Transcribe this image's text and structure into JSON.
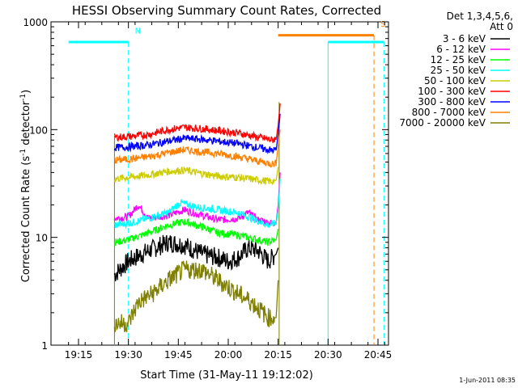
{
  "chart_data": {
    "type": "line",
    "title": "HESSI Observing Summary Count Rates, Corrected",
    "xlabel": "Start Time (31-May-11 19:12:02)",
    "ylabel_main": "Corrected Count Rate (s",
    "ylabel_sup1": "-1",
    "ylabel_mid": " detector",
    "ylabel_sup2": "-1",
    "ylabel_end": ")",
    "yscale": "log",
    "xlim_minutes": [
      19.2,
      19.95
    ],
    "ylim": [
      1,
      1000
    ],
    "x_ticks": [
      {
        "label": "19:15",
        "t": 19.25
      },
      {
        "label": "19:30",
        "t": 19.5
      },
      {
        "label": "19:45",
        "t": 19.75
      },
      {
        "label": "20:00",
        "t": 20.0
      },
      {
        "label": "20:15",
        "t": 20.25
      },
      {
        "label": "20:30",
        "t": 20.5
      },
      {
        "label": "20:45",
        "t": 20.75
      }
    ],
    "y_ticks": [
      {
        "label": "1",
        "v": 1
      },
      {
        "label": "10",
        "v": 10
      },
      {
        "label": "100",
        "v": 100
      },
      {
        "label": "1000",
        "v": 1000
      }
    ],
    "legend_header": [
      "Det 1,3,4,5,6,",
      "Att 0"
    ],
    "series": [
      {
        "name": "3 - 6 keV",
        "color": "#000000",
        "points": [
          [
            19.43,
            4.5
          ],
          [
            19.5,
            6
          ],
          [
            19.6,
            7.5
          ],
          [
            19.7,
            9
          ],
          [
            19.78,
            8.5
          ],
          [
            19.87,
            7
          ],
          [
            19.95,
            6.5
          ],
          [
            20.0,
            6
          ],
          [
            20.05,
            6.5
          ],
          [
            20.1,
            8
          ],
          [
            20.15,
            7.5
          ],
          [
            20.2,
            6
          ],
          [
            20.24,
            7
          ],
          [
            20.25,
            8
          ]
        ]
      },
      {
        "name": "6 - 12 keV",
        "color": "#ff00ff",
        "points": [
          [
            19.43,
            15
          ],
          [
            19.5,
            15.5
          ],
          [
            19.55,
            20
          ],
          [
            19.6,
            15
          ],
          [
            19.7,
            16
          ],
          [
            19.78,
            18
          ],
          [
            19.87,
            16
          ],
          [
            19.95,
            14.5
          ],
          [
            20.05,
            15
          ],
          [
            20.1,
            17
          ],
          [
            20.15,
            14.5
          ],
          [
            20.22,
            13.5
          ],
          [
            20.24,
            14
          ],
          [
            20.25,
            20
          ],
          [
            20.26,
            40
          ]
        ]
      },
      {
        "name": "12 - 25 keV",
        "color": "#00ff00",
        "points": [
          [
            19.43,
            9
          ],
          [
            19.5,
            9.5
          ],
          [
            19.6,
            11
          ],
          [
            19.7,
            13
          ],
          [
            19.78,
            14
          ],
          [
            19.87,
            12.5
          ],
          [
            19.95,
            11
          ],
          [
            20.05,
            10.5
          ],
          [
            20.1,
            10
          ],
          [
            20.2,
            9
          ],
          [
            20.24,
            9.5
          ],
          [
            20.25,
            12
          ]
        ]
      },
      {
        "name": "25 - 50 keV",
        "color": "#00ffff",
        "points": [
          [
            19.43,
            13
          ],
          [
            19.5,
            13.5
          ],
          [
            19.6,
            15
          ],
          [
            19.7,
            17
          ],
          [
            19.76,
            21
          ],
          [
            19.85,
            19
          ],
          [
            19.95,
            18
          ],
          [
            20.05,
            17
          ],
          [
            20.12,
            15
          ],
          [
            20.2,
            13
          ],
          [
            20.24,
            13.5
          ],
          [
            20.25,
            18
          ],
          [
            20.26,
            35
          ]
        ]
      },
      {
        "name": "50 - 100 keV",
        "color": "#cccc00",
        "points": [
          [
            19.43,
            35
          ],
          [
            19.5,
            36
          ],
          [
            19.6,
            38
          ],
          [
            19.7,
            41
          ],
          [
            19.78,
            42
          ],
          [
            19.87,
            39
          ],
          [
            19.95,
            37
          ],
          [
            20.05,
            36
          ],
          [
            20.15,
            34
          ],
          [
            20.22,
            33
          ],
          [
            20.24,
            34
          ],
          [
            20.25,
            45
          ]
        ]
      },
      {
        "name": "100 - 300 keV",
        "color": "#ff0000",
        "points": [
          [
            19.43,
            85
          ],
          [
            19.5,
            86
          ],
          [
            19.6,
            90
          ],
          [
            19.7,
            100
          ],
          [
            19.78,
            105
          ],
          [
            19.87,
            102
          ],
          [
            19.95,
            98
          ],
          [
            20.05,
            93
          ],
          [
            20.15,
            85
          ],
          [
            20.22,
            80
          ],
          [
            20.24,
            82
          ],
          [
            20.25,
            110
          ],
          [
            20.26,
            175
          ]
        ]
      },
      {
        "name": "300 - 800 keV",
        "color": "#0000ff",
        "points": [
          [
            19.43,
            68
          ],
          [
            19.5,
            69
          ],
          [
            19.6,
            72
          ],
          [
            19.7,
            78
          ],
          [
            19.78,
            83
          ],
          [
            19.87,
            81
          ],
          [
            19.95,
            78
          ],
          [
            20.05,
            74
          ],
          [
            20.15,
            68
          ],
          [
            20.22,
            64
          ],
          [
            20.24,
            65
          ],
          [
            20.25,
            90
          ],
          [
            20.26,
            140
          ]
        ]
      },
      {
        "name": "800 - 7000 keV",
        "color": "#ff8000",
        "points": [
          [
            19.43,
            52
          ],
          [
            19.5,
            53
          ],
          [
            19.6,
            56
          ],
          [
            19.7,
            61
          ],
          [
            19.78,
            65
          ],
          [
            19.87,
            62
          ],
          [
            19.95,
            60
          ],
          [
            20.05,
            56
          ],
          [
            20.15,
            51
          ],
          [
            20.22,
            48
          ],
          [
            20.24,
            49
          ],
          [
            20.25,
            70
          ],
          [
            20.26,
            100
          ]
        ]
      },
      {
        "name": "7000 - 20000 keV",
        "color": "#808000",
        "points": [
          [
            19.43,
            1.6
          ],
          [
            19.5,
            1.6
          ],
          [
            19.55,
            2.5
          ],
          [
            19.62,
            3
          ],
          [
            19.7,
            4
          ],
          [
            19.78,
            5
          ],
          [
            19.87,
            5
          ],
          [
            19.95,
            4
          ],
          [
            20.05,
            3
          ],
          [
            20.12,
            2.5
          ],
          [
            20.2,
            1.8
          ],
          [
            20.24,
            1.8
          ],
          [
            20.25,
            4
          ]
        ]
      }
    ],
    "flags": [
      {
        "label": "N",
        "color": "#00ffff",
        "level": 650,
        "t_start": 19.2,
        "t_end": 19.5
      },
      {
        "label": "S",
        "color": "#ff8000",
        "level": 750,
        "t_start": 20.25,
        "t_end": 20.73
      },
      {
        "label": "",
        "color": "#00ffff",
        "level": 650,
        "t_start": 20.5,
        "t_end": 20.78
      }
    ]
  },
  "timestamp": "1-Jun-2011 08:35"
}
